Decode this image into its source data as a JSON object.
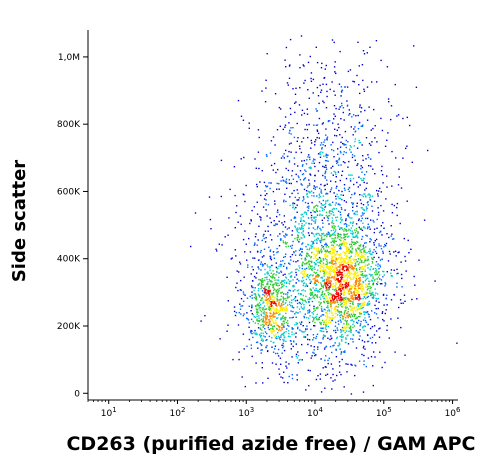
{
  "chart_data": {
    "type": "scatter",
    "title": "",
    "xlabel": "CD263 (purified azide free) / GAM APC",
    "ylabel": "Side scatter",
    "x_scale": "log",
    "xlim": [
      5,
      1200000
    ],
    "ylim": [
      -20000,
      1080000
    ],
    "x_ticks": [
      {
        "value": 10,
        "label_base": "10",
        "label_exp": "1"
      },
      {
        "value": 100,
        "label_base": "10",
        "label_exp": "2"
      },
      {
        "value": 1000,
        "label_base": "10",
        "label_exp": "3"
      },
      {
        "value": 10000,
        "label_base": "10",
        "label_exp": "4"
      },
      {
        "value": 100000,
        "label_base": "10",
        "label_exp": "5"
      },
      {
        "value": 1000000,
        "label_base": "10",
        "label_exp": "6"
      }
    ],
    "y_ticks": [
      {
        "value": 0,
        "label": "0"
      },
      {
        "value": 200000,
        "label": "200K"
      },
      {
        "value": 400000,
        "label": "400K"
      },
      {
        "value": 600000,
        "label": "600K"
      },
      {
        "value": 800000,
        "label": "800K"
      },
      {
        "value": 1000000,
        "label": "1,0M"
      }
    ],
    "grid": false,
    "legend": "none",
    "density_colors": [
      "#0000cc",
      "#0066ff",
      "#00cccc",
      "#33cc33",
      "#ffee00",
      "#ff8800",
      "#ee0000"
    ],
    "clusters": [
      {
        "x_median": 2200,
        "y_median": 260000,
        "x_spread_log": 0.18,
        "y_spread": 65000,
        "n": 600
      },
      {
        "x_median": 25000,
        "y_median": 330000,
        "x_spread_log": 0.3,
        "y_spread": 90000,
        "n": 1500
      },
      {
        "x_median": 10000,
        "y_median": 420000,
        "x_spread_log": 0.55,
        "y_spread": 200000,
        "n": 1500
      },
      {
        "x_median": 20000,
        "y_median": 700000,
        "x_spread_log": 0.5,
        "y_spread": 200000,
        "n": 500
      }
    ]
  }
}
